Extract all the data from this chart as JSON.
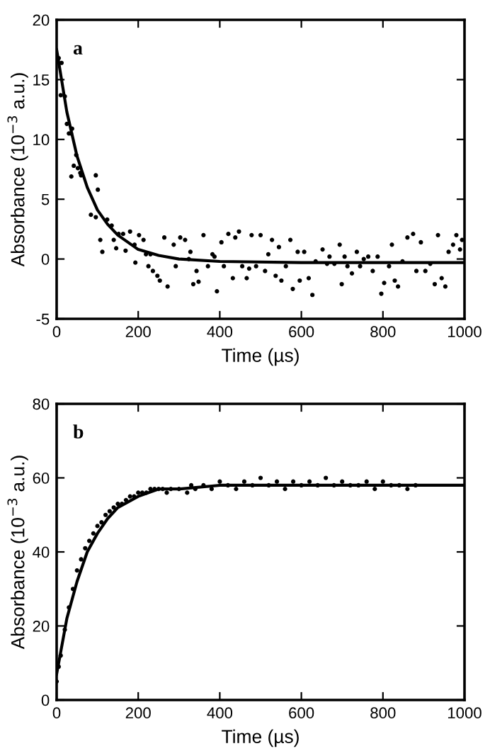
{
  "chart_data": [
    {
      "type": "scatter",
      "xlabel": "Time (µs)",
      "ylabel": "Absorbance (10$^{−3}$ a.u.)",
      "annotations": [
        "a"
      ],
      "xlim": [
        0,
        1000
      ],
      "ylim": [
        -5,
        20
      ],
      "xticks": [
        0,
        200,
        400,
        600,
        800,
        1000
      ],
      "yticks": [
        -5,
        0,
        5,
        10,
        15,
        20
      ],
      "grid": false,
      "series": [
        {
          "marker": "circle",
          "color": "#000000",
          "x": [
            5,
            12,
            10,
            20,
            25,
            30,
            38,
            35,
            48,
            42,
            52,
            60,
            36,
            58,
            96,
            101,
            84,
            96,
            107,
            112,
            124,
            135,
            140,
            152,
            146,
            163,
            169,
            180,
            191,
            202,
            193,
            213,
            219,
            230,
            225,
            236,
            247,
            253,
            264,
            272,
            287,
            292,
            303,
            315,
            324,
            328,
            335,
            343,
            360,
            348,
            371,
            382,
            387,
            393,
            404,
            410,
            421,
            432,
            438,
            447,
            455,
            466,
            472,
            478,
            489,
            500,
            511,
            519,
            528,
            537,
            545,
            551,
            562,
            573,
            579,
            591,
            596,
            607,
            618,
            627,
            635,
            652,
            663,
            669,
            681,
            694,
            699,
            706,
            713,
            724,
            736,
            744,
            753,
            764,
            775,
            787,
            796,
            803,
            815,
            822,
            829,
            837,
            848,
            860,
            874,
            882,
            893,
            904,
            916,
            927,
            935,
            944,
            953,
            961,
            972,
            980,
            989,
            994
          ],
          "values": [
            16.8,
            16.4,
            13.7,
            13.6,
            11.3,
            10.5,
            10.9,
            10.5,
            8.7,
            7.8,
            7.6,
            7.0,
            6.9,
            7.2,
            7.0,
            5.8,
            3.7,
            3.5,
            1.6,
            0.6,
            3.3,
            2.8,
            1.6,
            2.1,
            0.9,
            2.1,
            0.7,
            2.3,
            1.2,
            2.0,
            -0.3,
            1.6,
            0.4,
            0.4,
            -0.6,
            -1.0,
            -1.4,
            -1.8,
            1.8,
            -2.3,
            1.2,
            -0.6,
            1.8,
            1.6,
            0.0,
            0.6,
            -2.1,
            -1.0,
            2.0,
            -1.9,
            -0.6,
            0.4,
            0.2,
            -2.7,
            1.4,
            -0.6,
            2.1,
            -1.6,
            1.8,
            2.3,
            -0.6,
            -1.6,
            -0.8,
            2.0,
            -0.6,
            2.0,
            -1.0,
            0.4,
            1.6,
            -1.4,
            1.0,
            -1.8,
            -0.6,
            1.6,
            -2.5,
            0.6,
            -1.8,
            0.6,
            -1.6,
            -3.0,
            -0.2,
            0.8,
            -0.4,
            0.2,
            -0.4,
            1.2,
            -2.1,
            0.2,
            -0.6,
            -1.2,
            0.6,
            -0.6,
            0.0,
            0.2,
            -1.0,
            0.2,
            -2.9,
            -2.0,
            -0.6,
            1.2,
            -1.8,
            -2.3,
            -0.2,
            1.8,
            2.1,
            -1.0,
            1.4,
            -1.0,
            -0.4,
            -2.1,
            2.0,
            -1.6,
            -2.3,
            0.6,
            1.2,
            2.0,
            0.8,
            1.6
          ]
        },
        {
          "type": "line",
          "color": "#000000",
          "x": [
            0,
            25,
            50,
            75,
            100,
            125,
            150,
            200,
            250,
            300,
            400,
            600,
            800,
            1000
          ],
          "values": [
            17.5,
            12.3,
            8.6,
            6.0,
            4.1,
            2.9,
            2.0,
            0.8,
            0.3,
            0.0,
            -0.2,
            -0.3,
            -0.3,
            -0.3
          ]
        }
      ]
    },
    {
      "type": "scatter",
      "xlabel": "Time (µs)",
      "ylabel": "Absorbance (10$^{−3}$ a.u.)",
      "annotations": [
        "b"
      ],
      "xlim": [
        0,
        1000
      ],
      "ylim": [
        0,
        80
      ],
      "xticks": [
        0,
        200,
        400,
        600,
        800,
        1000
      ],
      "yticks": [
        0,
        20,
        40,
        60,
        80
      ],
      "grid": false,
      "series": [
        {
          "marker": "circle",
          "color": "#000000",
          "x": [
            0,
            5,
            10,
            20,
            30,
            40,
            50,
            60,
            70,
            80,
            90,
            100,
            110,
            120,
            130,
            140,
            150,
            160,
            170,
            180,
            190,
            200,
            210,
            220,
            230,
            240,
            250,
            260,
            270,
            280,
            300,
            320,
            330,
            340,
            360,
            380,
            400,
            420,
            440,
            460,
            480,
            500,
            520,
            540,
            560,
            580,
            600,
            620,
            640,
            660,
            680,
            700,
            720,
            740,
            760,
            780,
            800,
            820,
            840,
            860,
            880
          ],
          "values": [
            5,
            9,
            12,
            19,
            25,
            30,
            35,
            38,
            41,
            43,
            45,
            47,
            48,
            50,
            51,
            52,
            53,
            53,
            54,
            55,
            55,
            56,
            56,
            56,
            57,
            57,
            57,
            57,
            56,
            57,
            57,
            56,
            58,
            57,
            58,
            57,
            59,
            58,
            57,
            59,
            58,
            60,
            58,
            59,
            57,
            59,
            58,
            59,
            58,
            60,
            58,
            59,
            58,
            58,
            59,
            57,
            59,
            58,
            58,
            57,
            58
          ]
        },
        {
          "type": "line",
          "color": "#000000",
          "x": [
            0,
            25,
            50,
            75,
            100,
            125,
            150,
            200,
            250,
            300,
            400,
            600,
            800,
            1000
          ],
          "values": [
            7,
            22,
            32,
            40,
            45,
            49,
            52,
            55,
            57,
            57,
            58,
            58,
            58,
            58
          ]
        }
      ]
    }
  ]
}
